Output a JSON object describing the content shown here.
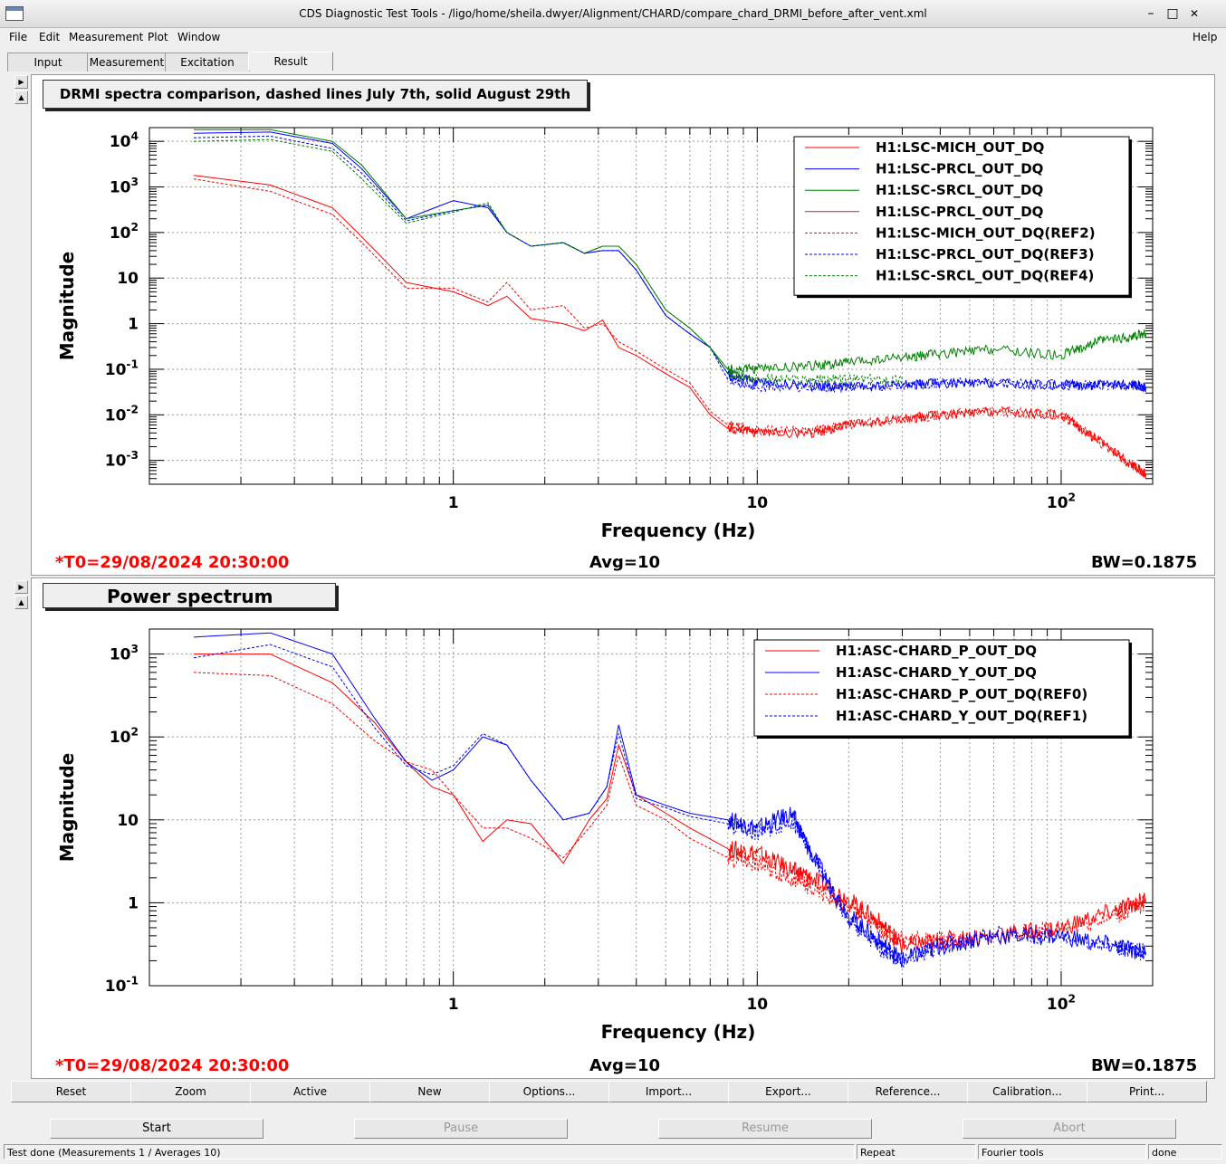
{
  "window": {
    "title": "CDS Diagnostic Test Tools - /ligo/home/sheila.dwyer/Alignment/CHARD/compare_chard_DRMI_before_after_vent.xml",
    "minimize": "–",
    "maximize": "□",
    "close": "✕"
  },
  "menu": {
    "file": "File",
    "edit": "Edit",
    "measurement": "Measurement",
    "plot": "Plot",
    "window": "Window",
    "help": "Help"
  },
  "tabs": [
    "Input",
    "Measurement",
    "Excitation",
    "Result"
  ],
  "panel1": {
    "title": "DRMI spectra comparison, dashed lines July 7th, solid August 29th",
    "footer_left": "*T0=29/08/2024 20:30:00",
    "footer_mid": "Avg=10",
    "footer_right": "BW=0.1875"
  },
  "panel2": {
    "title": "Power spectrum",
    "footer_left": "*T0=29/08/2024 20:30:00",
    "footer_mid": "Avg=10",
    "footer_right": "BW=0.1875"
  },
  "buttons": {
    "reset": "Reset",
    "zoom": "Zoom",
    "active": "Active",
    "new": "New",
    "options": "Options...",
    "import": "Import...",
    "export": "Export...",
    "reference": "Reference...",
    "calibration": "Calibration...",
    "print": "Print..."
  },
  "actions": {
    "start": "Start",
    "pause": "Pause",
    "resume": "Resume",
    "abort": "Abort"
  },
  "status": {
    "message": "Test done (Measurements 1 / Averages 10)",
    "mode": "Repeat",
    "tool": "Fourier tools",
    "state": "done"
  },
  "colors": {
    "red": "#ff0000",
    "blue": "#0000ff",
    "green": "#008000",
    "darkred": "#b03030"
  },
  "chart_data": [
    {
      "type": "line",
      "xlabel": "Frequency (Hz)",
      "ylabel": "Magnitude",
      "xscale": "log",
      "yscale": "log",
      "xlim": [
        0.1,
        200
      ],
      "ylim": [
        0.0003,
        20000
      ],
      "x_ticks": [
        "1",
        "10",
        "10^2"
      ],
      "y_ticks": [
        "10^4",
        "10^3",
        "10^2",
        "10",
        "1",
        "10^-1",
        "10^-2",
        "10^-3"
      ],
      "grid": true,
      "legend_position": "top-right",
      "series": [
        {
          "name": "H1:LSC-MICH_OUT_DQ",
          "color": "#ff0000",
          "dash": false,
          "x": [
            0.14,
            0.25,
            0.4,
            0.5,
            0.7,
            1,
            1.3,
            1.5,
            1.8,
            2.3,
            2.7,
            3.1,
            3.5,
            4,
            5,
            6,
            7,
            8,
            10,
            15,
            20,
            30,
            40,
            60,
            100,
            130,
            170,
            190
          ],
          "y": [
            1800,
            1100,
            350,
            80,
            8,
            5,
            2.5,
            4,
            1.3,
            1,
            0.7,
            1.2,
            0.3,
            0.2,
            0.08,
            0.04,
            0.01,
            0.005,
            0.004,
            0.004,
            0.006,
            0.008,
            0.01,
            0.012,
            0.01,
            0.003,
            0.0008,
            0.0005
          ]
        },
        {
          "name": "H1:LSC-PRCL_OUT_DQ",
          "color": "#0000ff",
          "dash": false,
          "x": [
            0.14,
            0.25,
            0.4,
            0.5,
            0.7,
            1,
            1.3,
            1.5,
            1.8,
            2.3,
            2.7,
            3.1,
            3.5,
            4,
            5,
            6,
            7,
            8,
            10,
            15,
            20,
            30,
            40,
            60,
            100,
            130,
            170,
            190
          ],
          "y": [
            15000,
            16000,
            9000,
            2500,
            200,
            500,
            350,
            100,
            50,
            60,
            35,
            40,
            40,
            15,
            1.5,
            0.6,
            0.3,
            0.08,
            0.05,
            0.045,
            0.04,
            0.045,
            0.05,
            0.05,
            0.045,
            0.045,
            0.045,
            0.04
          ]
        },
        {
          "name": "H1:LSC-SRCL_OUT_DQ",
          "color": "#008000",
          "dash": false,
          "x": [
            0.14,
            0.25,
            0.4,
            0.5,
            0.7,
            1,
            1.3,
            1.5,
            1.8,
            2.3,
            2.7,
            3.1,
            3.5,
            4,
            5,
            6,
            7,
            8,
            10,
            15,
            20,
            30,
            40,
            60,
            100,
            130,
            170,
            190
          ],
          "y": [
            18000,
            18000,
            10000,
            3000,
            200,
            300,
            400,
            100,
            50,
            60,
            35,
            50,
            50,
            20,
            2,
            0.8,
            0.3,
            0.1,
            0.1,
            0.12,
            0.14,
            0.18,
            0.22,
            0.28,
            0.2,
            0.4,
            0.5,
            0.6
          ]
        },
        {
          "name": "H1:LSC-PRCL_OUT_DQ",
          "color": "#b03030",
          "dash": false,
          "x": [],
          "y": []
        },
        {
          "name": "H1:LSC-MICH_OUT_DQ(REF2)",
          "color": "#ff0000",
          "dash": true,
          "x": [
            0.14,
            0.25,
            0.4,
            0.5,
            0.7,
            1,
            1.3,
            1.5,
            1.8,
            2.3,
            2.7,
            3.1,
            3.5,
            4,
            5,
            6,
            7,
            8,
            10,
            15,
            20,
            30,
            40,
            60,
            100,
            130,
            170,
            190
          ],
          "y": [
            1500,
            800,
            250,
            60,
            6,
            6,
            3,
            8,
            2,
            2.5,
            0.8,
            1,
            0.4,
            0.25,
            0.1,
            0.05,
            0.012,
            0.006,
            0.0045,
            0.0045,
            0.006,
            0.008,
            0.01,
            0.012,
            0.01,
            0.003,
            0.0008,
            0.0005
          ]
        },
        {
          "name": "H1:LSC-PRCL_OUT_DQ(REF3)",
          "color": "#0000ff",
          "dash": true,
          "x": [
            0.14,
            0.25,
            0.4,
            0.5,
            0.7,
            1,
            1.3,
            1.5,
            1.8,
            2.3,
            2.7,
            3.1,
            3.5,
            4,
            5,
            6,
            7,
            8,
            10,
            15,
            20,
            30,
            40,
            60,
            100,
            130,
            170,
            190
          ],
          "y": [
            12000,
            13000,
            7000,
            2000,
            180,
            300,
            400,
            100,
            50,
            60,
            35,
            40,
            40,
            15,
            1.5,
            0.6,
            0.3,
            0.06,
            0.04,
            0.04,
            0.04,
            0.045,
            0.05,
            0.05,
            0.045,
            0.045,
            0.045,
            0.04
          ]
        },
        {
          "name": "H1:LSC-SRCL_OUT_DQ(REF4)",
          "color": "#008000",
          "dash": true,
          "x": [
            0.14,
            0.25,
            0.4,
            0.5,
            0.7,
            1,
            1.3,
            1.5,
            1.8,
            2.3,
            2.7,
            3.1,
            3.5,
            4,
            5,
            6,
            7,
            8,
            10,
            15,
            20,
            30
          ],
          "y": [
            10000,
            11000,
            6000,
            1500,
            160,
            280,
            450,
            100,
            50,
            60,
            35,
            50,
            50,
            20,
            2,
            0.8,
            0.3,
            0.08,
            0.06,
            0.06,
            0.06,
            0.06
          ]
        }
      ]
    },
    {
      "type": "line",
      "xlabel": "Frequency (Hz)",
      "ylabel": "Magnitude",
      "xscale": "log",
      "yscale": "log",
      "xlim": [
        0.1,
        200
      ],
      "ylim": [
        0.1,
        2000
      ],
      "x_ticks": [
        "1",
        "10",
        "10^2"
      ],
      "y_ticks": [
        "10^3",
        "10^2",
        "10",
        "1",
        "10^-1"
      ],
      "grid": true,
      "legend_position": "top-right",
      "series": [
        {
          "name": "H1:ASC-CHARD_P_OUT_DQ",
          "color": "#ff0000",
          "dash": false,
          "x": [
            0.14,
            0.25,
            0.4,
            0.55,
            0.7,
            0.85,
            1,
            1.25,
            1.5,
            1.8,
            2.3,
            2.8,
            3.2,
            3.5,
            4,
            5,
            6,
            8,
            10,
            13,
            15,
            20,
            25,
            30,
            40,
            60,
            100,
            150,
            190
          ],
          "y": [
            1000,
            1000,
            450,
            150,
            50,
            25,
            20,
            5.5,
            10,
            9,
            3,
            10,
            18,
            80,
            20,
            12,
            8,
            4.5,
            4,
            2.5,
            2,
            1.1,
            0.6,
            0.3,
            0.35,
            0.4,
            0.5,
            0.8,
            1.1
          ]
        },
        {
          "name": "H1:ASC-CHARD_Y_OUT_DQ",
          "color": "#0000ff",
          "dash": false,
          "x": [
            0.14,
            0.25,
            0.4,
            0.55,
            0.7,
            0.85,
            1,
            1.25,
            1.5,
            1.8,
            2.3,
            2.8,
            3.2,
            3.5,
            4,
            5,
            6,
            8,
            10,
            13,
            15,
            20,
            25,
            30,
            40,
            60,
            100,
            150,
            190
          ],
          "y": [
            1600,
            1800,
            1000,
            170,
            50,
            30,
            40,
            100,
            80,
            30,
            10,
            12,
            25,
            140,
            20,
            15,
            12,
            10,
            8,
            12,
            4,
            0.7,
            0.35,
            0.2,
            0.3,
            0.4,
            0.4,
            0.3,
            0.25
          ]
        },
        {
          "name": "H1:ASC-CHARD_P_OUT_DQ(REF0)",
          "color": "#ff0000",
          "dash": true,
          "x": [
            0.14,
            0.25,
            0.4,
            0.55,
            0.7,
            0.85,
            1,
            1.25,
            1.5,
            1.8,
            2.3,
            2.8,
            3.2,
            3.5,
            4,
            5,
            6,
            8,
            10,
            13,
            15,
            20,
            25,
            30,
            40,
            60,
            100,
            150,
            190
          ],
          "y": [
            600,
            550,
            250,
            90,
            50,
            40,
            20,
            8,
            8,
            6,
            3.5,
            8,
            15,
            60,
            15,
            10,
            6,
            3.5,
            3,
            2,
            1.5,
            0.9,
            0.5,
            0.35,
            0.35,
            0.4,
            0.5,
            0.7,
            1
          ]
        },
        {
          "name": "H1:ASC-CHARD_Y_OUT_DQ(REF1)",
          "color": "#0000ff",
          "dash": true,
          "x": [
            0.14,
            0.25,
            0.4,
            0.55,
            0.7,
            0.85,
            1,
            1.25,
            1.5,
            1.8,
            2.3,
            2.8,
            3.2,
            3.5,
            4,
            5,
            6,
            8,
            10,
            13,
            15,
            20,
            25,
            30,
            40,
            60,
            100,
            150,
            190
          ],
          "y": [
            900,
            1300,
            700,
            130,
            45,
            35,
            45,
            110,
            80,
            30,
            10,
            12,
            25,
            110,
            18,
            14,
            11,
            9,
            7,
            10,
            4,
            0.6,
            0.3,
            0.2,
            0.3,
            0.4,
            0.4,
            0.3,
            0.25
          ]
        }
      ]
    }
  ]
}
